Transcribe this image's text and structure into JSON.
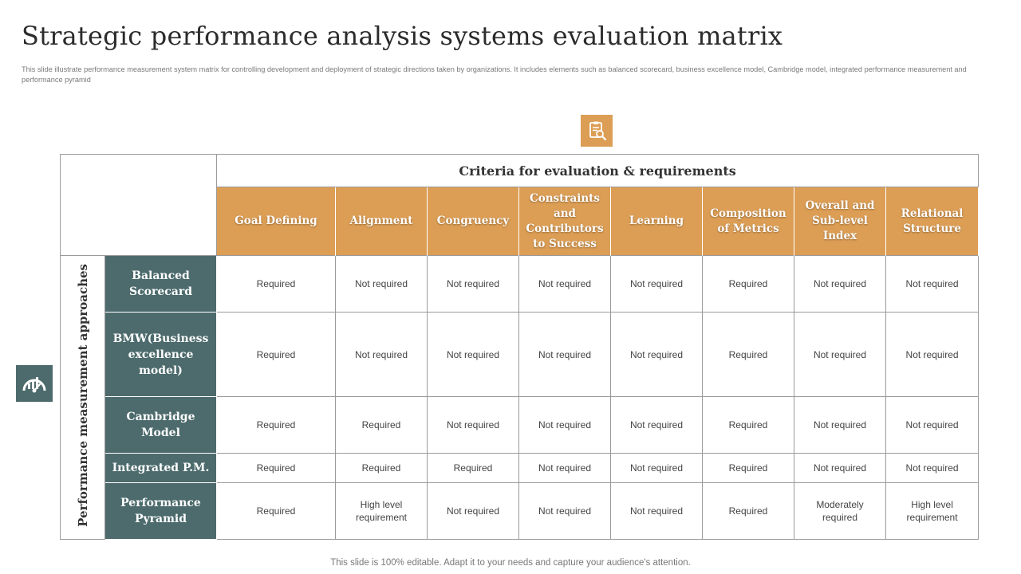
{
  "title": "Strategic performance analysis systems evaluation matrix",
  "subtitle": "This slide illustrate performance measurement system matrix for controlling development and deployment of strategic directions taken by organizations. It includes elements such as balanced scorecard, business excellence model, Cambridge  model, integrated performance measurement and performance pyramid",
  "icons": {
    "top": "clipboard-search-icon",
    "left": "gauge-icon"
  },
  "colors": {
    "accent_orange": "#dc9e55",
    "row_header_teal": "#4d6b6d"
  },
  "matrix": {
    "criteria_header": "Criteria for evaluation & requirements",
    "approaches_label": "Performance measurement approaches",
    "columns": [
      "Goal Defining",
      "Alignment",
      "Congruency",
      "Constraints and Contributors to Success",
      "Learning",
      "Composition of Metrics",
      "Overall and Sub-level Index",
      "Relational Structure"
    ],
    "rows": [
      {
        "label": "Balanced Scorecard",
        "cells": [
          "Required",
          "Not required",
          "Not required",
          "Not required",
          "Not required",
          "Required",
          "Not required",
          "Not required"
        ]
      },
      {
        "label": "BMW(Business excellence model)",
        "cells": [
          "Required",
          "Not required",
          "Not required",
          "Not required",
          "Not required",
          "Required",
          "Not required",
          "Not required"
        ]
      },
      {
        "label": "Cambridge Model",
        "cells": [
          "Required",
          "Required",
          "Not required",
          "Not required",
          "Not required",
          "Required",
          "Not required",
          "Not required"
        ]
      },
      {
        "label": "Integrated P.M.",
        "cells": [
          "Required",
          "Required",
          "Required",
          "Not required",
          "Not required",
          "Required",
          "Not required",
          "Not required"
        ]
      },
      {
        "label": "Performance Pyramid",
        "cells": [
          "Required",
          "High level requirement",
          "Not required",
          "Not required",
          "Not required",
          "Required",
          "Moderately required",
          "High level requirement"
        ]
      }
    ]
  },
  "footer": "This slide is 100% editable. Adapt it to your needs and capture your audience's attention."
}
